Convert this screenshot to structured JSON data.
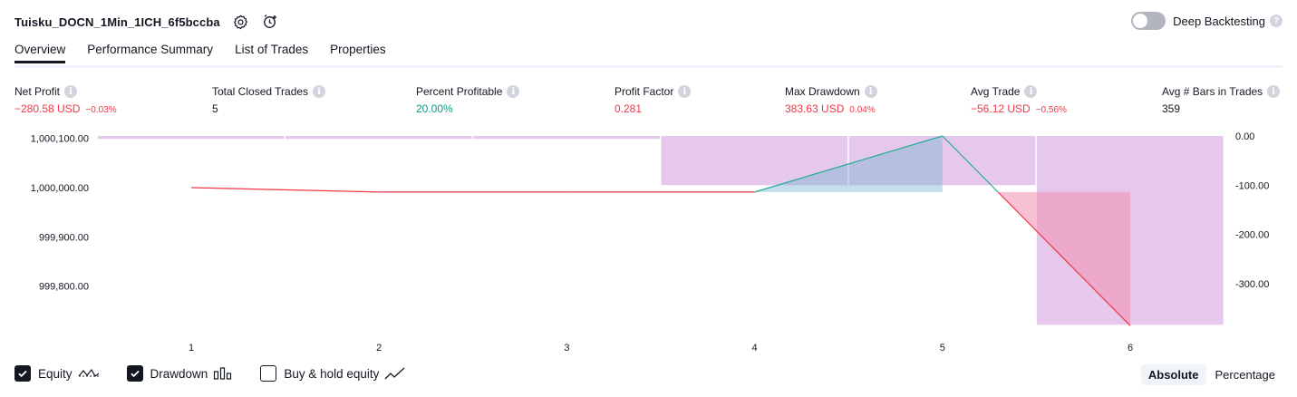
{
  "header": {
    "title": "Tuisku_DOCN_1Min_1ICH_6f5bccba",
    "settings_icon": "gear-icon",
    "alert_icon": "add-alert-icon"
  },
  "deep_backtesting": {
    "label": "Deep Backtesting",
    "enabled": false,
    "help": "?"
  },
  "tabs": [
    {
      "label": "Overview",
      "active": true
    },
    {
      "label": "Performance Summary",
      "active": false
    },
    {
      "label": "List of Trades",
      "active": false
    },
    {
      "label": "Properties",
      "active": false
    }
  ],
  "metrics": {
    "info_glyph": "i",
    "net_profit": {
      "label": "Net Profit",
      "value": "−280.58 USD",
      "pct": "−0.03%"
    },
    "total_closed_trades": {
      "label": "Total Closed Trades",
      "value": "5"
    },
    "percent_profitable": {
      "label": "Percent Profitable",
      "value": "20.00%"
    },
    "profit_factor": {
      "label": "Profit Factor",
      "value": "0.281"
    },
    "max_drawdown": {
      "label": "Max Drawdown",
      "value": "383.63 USD",
      "pct": "0.04%"
    },
    "avg_trade": {
      "label": "Avg Trade",
      "value": "−56.12 USD",
      "pct": "−0.56%"
    },
    "avg_bars": {
      "label": "Avg # Bars in Trades",
      "value": "359"
    }
  },
  "colors": {
    "negative": "#f23645",
    "positive": "#089981",
    "drawdown_fill": "#e1bee7",
    "equity_up": "#22ab94"
  },
  "chart_data": {
    "type": "line",
    "x": [
      1,
      2,
      3,
      4,
      5,
      6
    ],
    "equity_ticks": [
      "1,000,100.00",
      "1,000,000.00",
      "999,900.00",
      "999,800.00"
    ],
    "drawdown_ticks": [
      "0.00",
      "-100.00",
      "-200.00",
      "-300.00"
    ],
    "series": [
      {
        "values": [
          1000000.0,
          999991.0,
          999991.0,
          999991.0,
          1000105.0,
          999719.42
        ]
      },
      {
        "values": [
          -6.0,
          -6.0,
          -6.0,
          -100.0,
          -100.0,
          -383.63
        ]
      }
    ],
    "y_equity_range": [
      999720,
      1000105
    ],
    "y_drawdown_range": [
      -385,
      0
    ]
  },
  "legend": [
    {
      "label": "Equity",
      "checked": true,
      "icon": "equity-line-icon"
    },
    {
      "label": "Drawdown",
      "checked": true,
      "icon": "drawdown-bars-icon"
    },
    {
      "label": "Buy & hold equity",
      "checked": false,
      "icon": "trend-line-icon"
    }
  ],
  "mode": {
    "absolute": "Absolute",
    "percentage": "Percentage",
    "active": "absolute"
  }
}
